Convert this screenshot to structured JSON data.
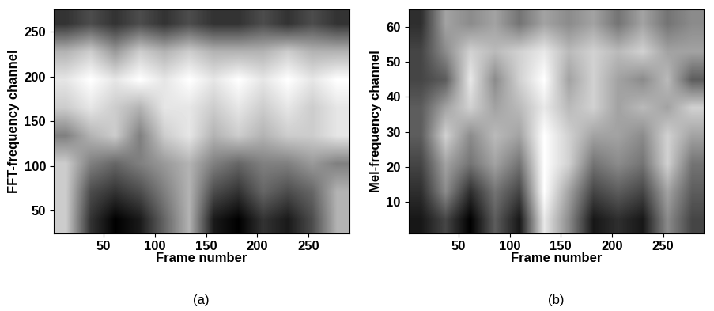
{
  "chart_data": [
    {
      "type": "heatmap",
      "caption": "(a)",
      "x_label": "Frame number",
      "y_label": "FFT-frequency channel",
      "xlim": [
        1,
        290
      ],
      "ylim": [
        25,
        275
      ],
      "xticks": [
        50,
        100,
        150,
        200,
        250
      ],
      "yticks": [
        50,
        100,
        150,
        200,
        250
      ],
      "cells": [
        [
          0.75,
          0.45,
          0.35,
          0.4,
          0.55,
          0.7,
          0.4,
          0.35,
          0.45,
          0.4,
          0.5,
          0.7
        ],
        [
          0.75,
          0.5,
          0.45,
          0.5,
          0.6,
          0.7,
          0.5,
          0.45,
          0.55,
          0.5,
          0.55,
          0.7
        ],
        [
          0.75,
          0.6,
          0.55,
          0.6,
          0.65,
          0.7,
          0.6,
          0.55,
          0.6,
          0.6,
          0.65,
          0.6
        ],
        [
          0.6,
          0.7,
          0.75,
          0.6,
          0.75,
          0.8,
          0.7,
          0.75,
          0.7,
          0.75,
          0.75,
          0.8
        ],
        [
          0.75,
          0.8,
          0.75,
          0.7,
          0.8,
          0.8,
          0.75,
          0.8,
          0.75,
          0.8,
          0.75,
          0.8
        ],
        [
          0.8,
          0.85,
          0.8,
          0.85,
          0.8,
          0.85,
          0.8,
          0.85,
          0.8,
          0.85,
          0.8,
          0.85
        ],
        [
          0.7,
          0.75,
          0.65,
          0.75,
          0.7,
          0.75,
          0.7,
          0.7,
          0.7,
          0.75,
          0.7,
          0.7
        ],
        [
          0.45,
          0.5,
          0.45,
          0.5,
          0.45,
          0.5,
          0.45,
          0.45,
          0.5,
          0.45,
          0.5,
          0.45
        ]
      ]
    },
    {
      "type": "heatmap",
      "caption": "(b)",
      "x_label": "Frame number",
      "y_label": "Mel-frequency channel",
      "xlim": [
        1,
        290
      ],
      "ylim": [
        1,
        65
      ],
      "xticks": [
        50,
        100,
        150,
        200,
        250
      ],
      "yticks": [
        10,
        20,
        30,
        40,
        50,
        60
      ],
      "cells": [
        [
          0.3,
          0.4,
          0.25,
          0.45,
          0.3,
          0.75,
          0.55,
          0.3,
          0.35,
          0.3,
          0.55,
          0.4
        ],
        [
          0.35,
          0.55,
          0.35,
          0.5,
          0.4,
          0.8,
          0.6,
          0.4,
          0.45,
          0.4,
          0.6,
          0.45
        ],
        [
          0.4,
          0.6,
          0.5,
          0.6,
          0.5,
          0.8,
          0.7,
          0.5,
          0.55,
          0.5,
          0.7,
          0.5
        ],
        [
          0.45,
          0.7,
          0.55,
          0.65,
          0.6,
          0.8,
          0.7,
          0.6,
          0.6,
          0.55,
          0.7,
          0.6
        ],
        [
          0.45,
          0.6,
          0.7,
          0.6,
          0.65,
          0.75,
          0.65,
          0.7,
          0.6,
          0.65,
          0.6,
          0.7
        ],
        [
          0.4,
          0.45,
          0.75,
          0.55,
          0.7,
          0.8,
          0.6,
          0.7,
          0.6,
          0.55,
          0.65,
          0.45
        ],
        [
          0.4,
          0.55,
          0.7,
          0.65,
          0.7,
          0.75,
          0.65,
          0.7,
          0.65,
          0.7,
          0.6,
          0.6
        ],
        [
          0.35,
          0.6,
          0.55,
          0.6,
          0.5,
          0.6,
          0.55,
          0.6,
          0.5,
          0.6,
          0.5,
          0.55
        ]
      ]
    }
  ]
}
